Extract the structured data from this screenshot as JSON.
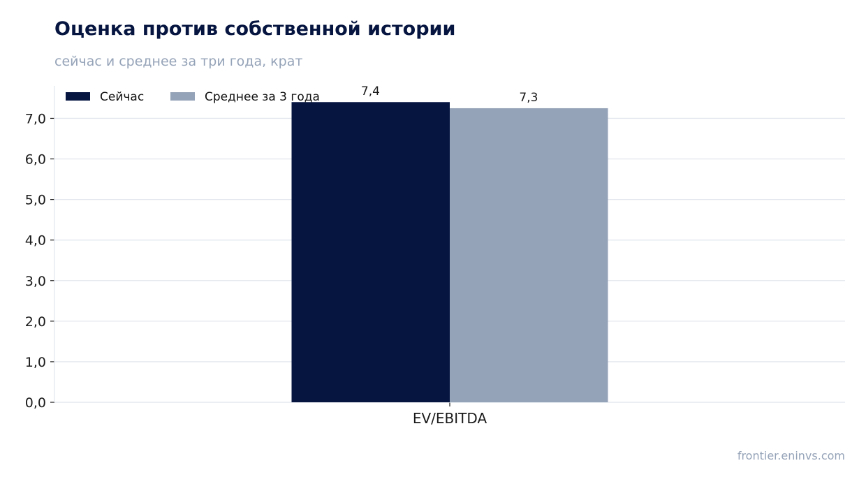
{
  "header": {
    "title": "Оценка против собственной истории",
    "subtitle": "сейчас и среднее за три года, крат"
  },
  "footer": {
    "source": "frontier.eninvs.com"
  },
  "colors": {
    "now": "#061540",
    "avg": "#95a3b8",
    "grid": "#e3e7ee",
    "axis": "#1a1a1a"
  },
  "chart_data": {
    "type": "bar",
    "categories": [
      "EV/EBITDA"
    ],
    "series": [
      {
        "name": "Сейчас",
        "values": [
          7.4
        ],
        "value_labels": [
          "7,4"
        ]
      },
      {
        "name": "Среднее за 3 года",
        "values": [
          7.25
        ],
        "value_labels": [
          "7,3"
        ]
      }
    ],
    "ylim": [
      0,
      7.8
    ],
    "yticks": [
      0,
      1,
      2,
      3,
      4,
      5,
      6,
      7
    ],
    "ytick_labels": [
      "0,0",
      "1,0",
      "2,0",
      "3,0",
      "4,0",
      "5,0",
      "6,0",
      "7,0"
    ],
    "grid": true,
    "legend": "top-left"
  }
}
